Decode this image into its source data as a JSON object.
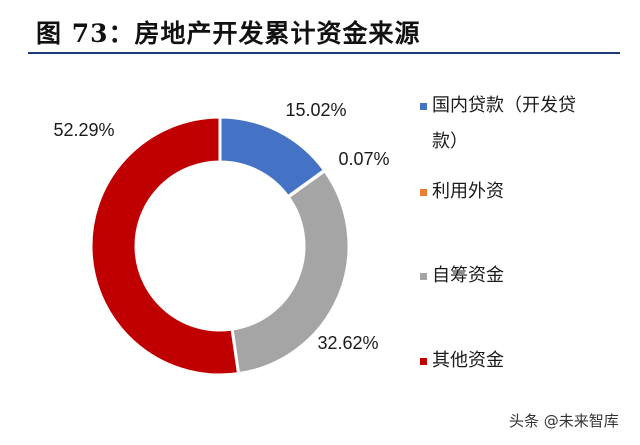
{
  "title": "图 73：房地产开发累计资金来源",
  "watermark": "头条 @未来智库",
  "chart_data": {
    "type": "pie",
    "donut": true,
    "start_angle_deg": 0,
    "direction": "clockwise",
    "series": [
      {
        "name": "国内贷款（开发贷款）",
        "value": 15.02,
        "label": "15.02%",
        "color": "#4472c4"
      },
      {
        "name": "利用外资",
        "value": 0.07,
        "label": "0.07%",
        "color": "#ed7d31"
      },
      {
        "name": "自筹资金",
        "value": 32.62,
        "label": "32.62%",
        "color": "#a5a5a5"
      },
      {
        "name": "其他资金",
        "value": 52.29,
        "label": "52.29%",
        "color": "#c00000"
      }
    ],
    "legend_position": "right",
    "legend": [
      {
        "lines": [
          "国内贷款（开发贷",
          "款）"
        ],
        "color": "#4472c4"
      },
      {
        "lines": [
          "利用外资"
        ],
        "color": "#ed7d31"
      },
      {
        "lines": [
          "自筹资金"
        ],
        "color": "#a5a5a5"
      },
      {
        "lines": [
          "其他资金"
        ],
        "color": "#c00000"
      }
    ]
  }
}
